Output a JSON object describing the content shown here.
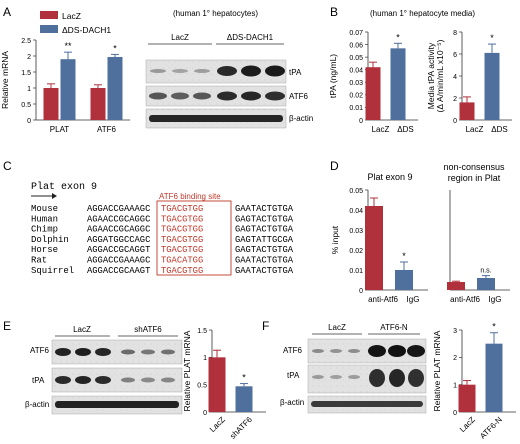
{
  "colors": {
    "red": "#b0303b",
    "blue": "#4f6f9c",
    "axis": "#333",
    "box": "#c0392b"
  },
  "panel_letters": [
    "A",
    "B",
    "C",
    "D",
    "E",
    "F"
  ],
  "panelA": {
    "legend": [
      "LacZ",
      "ΔDS-DACH1"
    ],
    "ylabel": "Relative mRNA",
    "cell_note": "(human 1° hepatocytes)",
    "blot_header": [
      "LacZ",
      "ΔDS-DACH1"
    ],
    "blot_labels": [
      "tPA",
      "ATF6",
      "β-actin"
    ]
  },
  "panelB": {
    "note": "(human 1° hepatocyte media)",
    "ylabel1": "tPA (ng/mL)",
    "ylabel2": "Media tPA activity",
    "ylabel2b": "(Δ A/min/mL x10⁻⁵)"
  },
  "panelC": {
    "title": "Plat exon 9",
    "site_label": "ATF6 binding site",
    "rows": [
      {
        "species": "Mouse",
        "left": "AGGACCGAAAGC",
        "site": "TGACGTGG",
        "right": "GAATACTGTGA"
      },
      {
        "species": "Human",
        "left": "AGAACCGCAGGC",
        "site": "TGACGTGG",
        "right": "GAGTACTGTGA"
      },
      {
        "species": "Chimp",
        "left": "AGAACCGCAGGC",
        "site": "TGACGTGG",
        "right": "GAGTACTGTGA"
      },
      {
        "species": "Dolphin",
        "left": "AGGATGGCCAGC",
        "site": "TGACGTGG",
        "right": "GAGTATTGCGA"
      },
      {
        "species": "Horse",
        "left": "AGGACCGCAGGT",
        "site": "TGACGTGG",
        "right": "GAGTACTGTGA"
      },
      {
        "species": "Rat",
        "left": "AGGACCGAAAGC",
        "site": "TGACATGG",
        "right": "GAATACTGTGA"
      },
      {
        "species": "Squirrel",
        "left": "AGGACCGCAAGT",
        "site": "TGACGTGG",
        "right": "GAATACTGTGA"
      }
    ]
  },
  "panelD": {
    "title1": "Plat exon 9",
    "title2a": "non-consensus",
    "title2b": "region in Plat",
    "ylabel": "% input",
    "ns": "n.s."
  },
  "panelE": {
    "blot_header": [
      "LacZ",
      "shATF6"
    ],
    "blot_labels": [
      "ATF6",
      "tPA",
      "β-actin"
    ],
    "ylabel": "Relative PLAT mRNA"
  },
  "panelF": {
    "blot_header": [
      "LacZ",
      "ATF6-N"
    ],
    "blot_labels": [
      "ATF6",
      "tPA",
      "β-actin"
    ],
    "ylabel": "Relative PLAT mRNA"
  },
  "chart_data": [
    {
      "id": "A",
      "type": "bar",
      "categories": [
        "PLAT",
        "ATF6"
      ],
      "series": [
        {
          "name": "LacZ",
          "values": [
            1.0,
            1.0
          ],
          "err": [
            0.13,
            0.1
          ]
        },
        {
          "name": "ΔDS-DACH1",
          "values": [
            1.9,
            1.97
          ],
          "err": [
            0.22,
            0.08
          ]
        }
      ],
      "ylim": [
        0,
        2.5
      ],
      "yticks": [
        0,
        0.5,
        1.0,
        1.5,
        2.0,
        2.5
      ],
      "annotations": [
        "**",
        "*"
      ]
    },
    {
      "id": "B1",
      "type": "bar",
      "categories": [
        "LacZ",
        "ΔDS"
      ],
      "values": [
        0.042,
        0.057
      ],
      "err": [
        0.004,
        0.004
      ],
      "ylim": [
        0,
        0.07
      ],
      "yticks": [
        0,
        0.01,
        0.02,
        0.03,
        0.04,
        0.05,
        0.06,
        0.07
      ],
      "annotations": [
        "",
        "*"
      ]
    },
    {
      "id": "B2",
      "type": "bar",
      "categories": [
        "LacZ",
        "ΔDS"
      ],
      "values": [
        1.6,
        6.1
      ],
      "err": [
        0.5,
        0.8
      ],
      "ylim": [
        0,
        8
      ],
      "yticks": [
        0,
        2,
        4,
        6,
        8
      ],
      "annotations": [
        "",
        "*"
      ]
    },
    {
      "id": "D1",
      "type": "bar",
      "categories": [
        "anti-Atf6",
        "IgG"
      ],
      "values": [
        0.042,
        0.01
      ],
      "err": [
        0.004,
        0.004
      ],
      "ylim": [
        0,
        0.05
      ],
      "yticks": [
        0,
        0.01,
        0.02,
        0.03,
        0.04,
        0.05
      ],
      "annotations": [
        "",
        "*"
      ]
    },
    {
      "id": "D2",
      "type": "bar",
      "categories": [
        "anti-Atf6",
        "IgG"
      ],
      "values": [
        0.004,
        0.006
      ],
      "err": [
        0.0004,
        0.0012
      ],
      "ylim": [
        0,
        0.05
      ],
      "annotations": [
        "",
        "n.s."
      ]
    },
    {
      "id": "E",
      "type": "bar",
      "categories": [
        "LacZ",
        "shATF6"
      ],
      "values": [
        1.0,
        0.47
      ],
      "err": [
        0.13,
        0.05
      ],
      "ylim": [
        0,
        1.5
      ],
      "yticks": [
        0,
        0.5,
        1.0,
        1.5
      ],
      "annotations": [
        "",
        "*"
      ]
    },
    {
      "id": "F",
      "type": "bar",
      "categories": [
        "LacZ",
        "ATF6-N"
      ],
      "values": [
        1.0,
        2.5
      ],
      "err": [
        0.15,
        0.4
      ],
      "ylim": [
        0,
        3
      ],
      "yticks": [
        0,
        1,
        2,
        3
      ],
      "annotations": [
        "",
        "*"
      ]
    }
  ]
}
